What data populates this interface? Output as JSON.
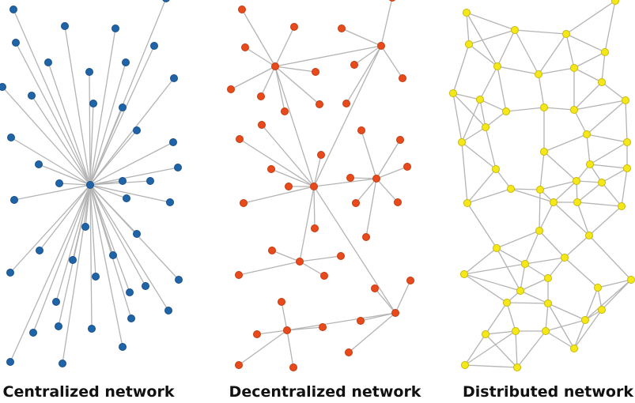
{
  "diagrams": [
    {
      "id": "centralized",
      "caption": "Centralized network",
      "node_color": "#2064a8",
      "node_stroke": "#18508a"
    },
    {
      "id": "decentralized",
      "caption": "Decentralized network",
      "node_color": "#e84a1c",
      "node_stroke": "#c23c12"
    },
    {
      "id": "distributed",
      "caption": "Distributed network",
      "node_color": "#f5e81a",
      "node_stroke": "#c9b800"
    }
  ]
}
